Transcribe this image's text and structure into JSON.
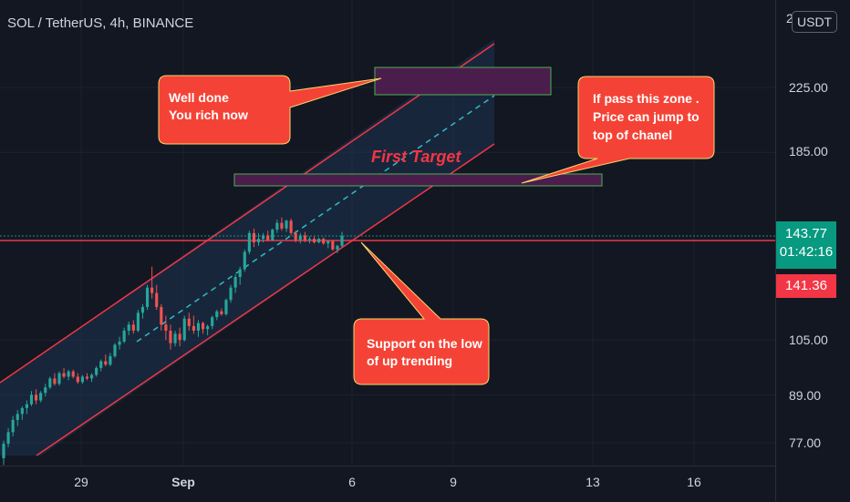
{
  "header": {
    "title": "SOL / TetherUS, 4h, BINANCE"
  },
  "price_axis": {
    "unit": "USDT",
    "top_partial_label": "2",
    "ticks": [
      "225.00",
      "185.00",
      "105.00",
      "89.00",
      "77.00"
    ],
    "current_price": "143.77",
    "countdown": "01:42:16",
    "marked_price": "141.36"
  },
  "time_axis": {
    "ticks": [
      "29",
      "Sep",
      "6",
      "9",
      "13",
      "16"
    ]
  },
  "annotations": {
    "callout_top_left": [
      "Well done",
      "You rich now"
    ],
    "callout_top_right": [
      "If pass this zone .",
      "Price can jump to",
      "top of chanel"
    ],
    "callout_bottom": [
      "Support on the low",
      "of up trending"
    ],
    "first_target_label": "First Target"
  },
  "colors": {
    "background": "#131722",
    "up_candle": "#26a69a",
    "down_candle": "#ef5350",
    "channel_line": "#f23645",
    "channel_fill": "#1e3a5a",
    "midline": "#2ebcc4",
    "callout": "#f44336",
    "callout_border": "#f5d76e",
    "zone_fill": "#4a1d4d",
    "zone_border": "#4caf50",
    "current_price_bg": "#089981",
    "marked_price_bg": "#f23645"
  },
  "chart_data": {
    "type": "candlestick",
    "symbol": "SOL / TetherUS",
    "interval": "4h",
    "exchange": "BINANCE",
    "y_scale": "log",
    "y_ticks": [
      77,
      89,
      105,
      185,
      225
    ],
    "x_ticks": [
      "29",
      "Sep",
      "6",
      "9",
      "13",
      "16"
    ],
    "current_price": 143.77,
    "marked_price": 141.36,
    "candles": [
      {
        "o": 73.5,
        "h": 77.5,
        "l": 72.0,
        "c": 76.8
      },
      {
        "o": 76.8,
        "h": 80.5,
        "l": 76.0,
        "c": 79.5
      },
      {
        "o": 79.5,
        "h": 83.5,
        "l": 78.5,
        "c": 82.5
      },
      {
        "o": 82.5,
        "h": 85.0,
        "l": 81.0,
        "c": 84.0
      },
      {
        "o": 84.0,
        "h": 86.0,
        "l": 82.5,
        "c": 85.5
      },
      {
        "o": 85.5,
        "h": 87.5,
        "l": 84.0,
        "c": 86.5
      },
      {
        "o": 86.5,
        "h": 90.0,
        "l": 86.0,
        "c": 89.0
      },
      {
        "o": 89.0,
        "h": 90.5,
        "l": 86.5,
        "c": 87.5
      },
      {
        "o": 87.5,
        "h": 90.0,
        "l": 87.0,
        "c": 89.5
      },
      {
        "o": 89.5,
        "h": 92.0,
        "l": 88.5,
        "c": 91.0
      },
      {
        "o": 91.0,
        "h": 94.0,
        "l": 90.5,
        "c": 93.5
      },
      {
        "o": 93.5,
        "h": 95.0,
        "l": 91.5,
        "c": 92.0
      },
      {
        "o": 92.0,
        "h": 95.5,
        "l": 91.5,
        "c": 95.0
      },
      {
        "o": 95.0,
        "h": 96.5,
        "l": 93.5,
        "c": 94.0
      },
      {
        "o": 94.0,
        "h": 96.0,
        "l": 93.0,
        "c": 95.5
      },
      {
        "o": 95.5,
        "h": 96.0,
        "l": 93.5,
        "c": 94.0
      },
      {
        "o": 94.0,
        "h": 95.0,
        "l": 92.0,
        "c": 92.5
      },
      {
        "o": 92.5,
        "h": 94.5,
        "l": 92.0,
        "c": 94.0
      },
      {
        "o": 94.0,
        "h": 95.0,
        "l": 93.0,
        "c": 93.5
      },
      {
        "o": 93.5,
        "h": 95.0,
        "l": 92.5,
        "c": 94.5
      },
      {
        "o": 94.5,
        "h": 97.0,
        "l": 94.0,
        "c": 96.5
      },
      {
        "o": 96.5,
        "h": 99.0,
        "l": 95.5,
        "c": 98.5
      },
      {
        "o": 98.5,
        "h": 100.5,
        "l": 97.0,
        "c": 97.5
      },
      {
        "o": 97.5,
        "h": 101.0,
        "l": 97.0,
        "c": 100.0
      },
      {
        "o": 100.0,
        "h": 104.0,
        "l": 99.5,
        "c": 103.5
      },
      {
        "o": 103.5,
        "h": 106.0,
        "l": 102.0,
        "c": 104.5
      },
      {
        "o": 104.5,
        "h": 109.0,
        "l": 104.0,
        "c": 108.0
      },
      {
        "o": 108.0,
        "h": 111.0,
        "l": 106.5,
        "c": 110.0
      },
      {
        "o": 110.0,
        "h": 111.5,
        "l": 107.0,
        "c": 108.0
      },
      {
        "o": 108.0,
        "h": 115.0,
        "l": 107.5,
        "c": 114.0
      },
      {
        "o": 114.0,
        "h": 117.0,
        "l": 112.0,
        "c": 116.0
      },
      {
        "o": 116.0,
        "h": 124.0,
        "l": 115.0,
        "c": 123.0
      },
      {
        "o": 123.0,
        "h": 131.0,
        "l": 119.0,
        "c": 121.0
      },
      {
        "o": 121.0,
        "h": 124.0,
        "l": 115.0,
        "c": 116.0
      },
      {
        "o": 116.0,
        "h": 117.0,
        "l": 108.0,
        "c": 110.0
      },
      {
        "o": 110.0,
        "h": 113.0,
        "l": 105.0,
        "c": 108.0
      },
      {
        "o": 108.0,
        "h": 110.0,
        "l": 102.0,
        "c": 104.0
      },
      {
        "o": 104.0,
        "h": 108.0,
        "l": 103.0,
        "c": 107.0
      },
      {
        "o": 107.0,
        "h": 109.0,
        "l": 103.0,
        "c": 105.0
      },
      {
        "o": 105.0,
        "h": 113.0,
        "l": 104.5,
        "c": 112.0
      },
      {
        "o": 112.0,
        "h": 114.0,
        "l": 108.0,
        "c": 109.5
      },
      {
        "o": 109.5,
        "h": 113.0,
        "l": 107.0,
        "c": 108.0
      },
      {
        "o": 108.0,
        "h": 111.5,
        "l": 106.0,
        "c": 110.5
      },
      {
        "o": 110.5,
        "h": 111.0,
        "l": 107.0,
        "c": 108.5
      },
      {
        "o": 108.5,
        "h": 110.0,
        "l": 106.5,
        "c": 109.5
      },
      {
        "o": 109.5,
        "h": 113.0,
        "l": 108.5,
        "c": 112.5
      },
      {
        "o": 112.5,
        "h": 115.0,
        "l": 111.5,
        "c": 114.5
      },
      {
        "o": 114.5,
        "h": 115.5,
        "l": 113.0,
        "c": 113.5
      },
      {
        "o": 113.5,
        "h": 119.0,
        "l": 113.0,
        "c": 118.5
      },
      {
        "o": 118.5,
        "h": 124.0,
        "l": 117.5,
        "c": 123.0
      },
      {
        "o": 123.0,
        "h": 128.0,
        "l": 121.0,
        "c": 127.0
      },
      {
        "o": 127.0,
        "h": 131.0,
        "l": 124.0,
        "c": 130.0
      },
      {
        "o": 130.0,
        "h": 138.0,
        "l": 129.0,
        "c": 137.0
      },
      {
        "o": 137.0,
        "h": 146.0,
        "l": 136.0,
        "c": 145.0
      },
      {
        "o": 145.0,
        "h": 147.0,
        "l": 139.0,
        "c": 141.0
      },
      {
        "o": 141.0,
        "h": 145.0,
        "l": 139.5,
        "c": 142.5
      },
      {
        "o": 142.5,
        "h": 145.0,
        "l": 141.0,
        "c": 144.0
      },
      {
        "o": 144.0,
        "h": 146.0,
        "l": 141.5,
        "c": 142.0
      },
      {
        "o": 142.0,
        "h": 147.0,
        "l": 141.5,
        "c": 146.5
      },
      {
        "o": 146.5,
        "h": 151.0,
        "l": 145.0,
        "c": 149.5
      },
      {
        "o": 149.5,
        "h": 152.0,
        "l": 146.0,
        "c": 147.0
      },
      {
        "o": 147.0,
        "h": 151.0,
        "l": 145.5,
        "c": 150.5
      },
      {
        "o": 150.5,
        "h": 151.5,
        "l": 144.0,
        "c": 145.0
      },
      {
        "o": 145.0,
        "h": 146.0,
        "l": 141.0,
        "c": 142.0
      },
      {
        "o": 142.0,
        "h": 145.0,
        "l": 140.5,
        "c": 144.0
      },
      {
        "o": 144.0,
        "h": 145.5,
        "l": 141.0,
        "c": 142.0
      },
      {
        "o": 142.0,
        "h": 143.5,
        "l": 140.5,
        "c": 142.5
      },
      {
        "o": 142.5,
        "h": 143.5,
        "l": 140.5,
        "c": 141.0
      },
      {
        "o": 141.0,
        "h": 143.0,
        "l": 140.5,
        "c": 142.5
      },
      {
        "o": 142.5,
        "h": 143.0,
        "l": 140.0,
        "c": 140.5
      },
      {
        "o": 140.5,
        "h": 142.0,
        "l": 138.5,
        "c": 141.5
      },
      {
        "o": 141.5,
        "h": 142.0,
        "l": 137.5,
        "c": 138.0
      },
      {
        "o": 138.0,
        "h": 140.0,
        "l": 136.5,
        "c": 139.5
      },
      {
        "o": 139.5,
        "h": 145.5,
        "l": 139.0,
        "c": 143.77
      }
    ]
  }
}
